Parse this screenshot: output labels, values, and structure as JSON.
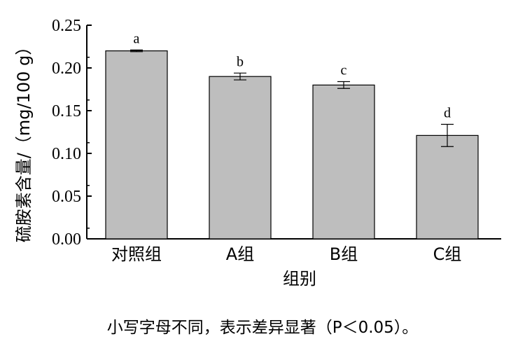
{
  "chart_data": {
    "type": "bar",
    "categories": [
      "对照组",
      "A组",
      "B组",
      "C组"
    ],
    "values": [
      0.22,
      0.19,
      0.18,
      0.121
    ],
    "errors": [
      0.001,
      0.004,
      0.004,
      0.013
    ],
    "significance_labels": [
      "a",
      "b",
      "c",
      "d"
    ],
    "xlabel": "组别",
    "ylabel": "硫胺素含量/（mg/100 g）",
    "ylim": [
      0,
      0.25
    ],
    "yticks": [
      "0.00",
      "0.05",
      "0.10",
      "0.15",
      "0.20",
      "0.25"
    ],
    "bar_color": "#bebebe",
    "grid": false
  },
  "note": "小写字母不同，表示差异显著（P＜0.05）。"
}
